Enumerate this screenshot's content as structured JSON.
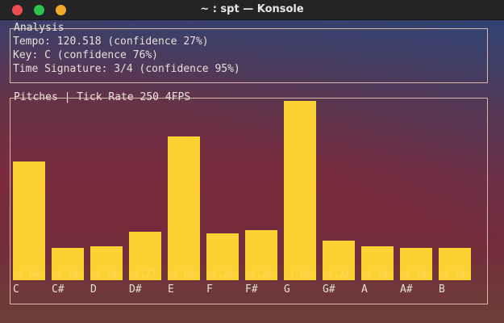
{
  "window": {
    "title": "~ : spt — Konsole"
  },
  "analysis": {
    "title": "Analysis",
    "tempo": "Tempo: 120.518 (confidence 27%)",
    "key": "Key: C (confidence 76%)",
    "time_signature": "Time Signature: 3/4 (confidence 95%)"
  },
  "pitches": {
    "title": "Pitches | Tick Rate 250 4FPS"
  },
  "chart_data": {
    "type": "bar",
    "categories": [
      "C",
      "C#",
      "D",
      "D#",
      "E",
      "F",
      "F#",
      "G",
      "G#",
      "A",
      "A#",
      "B"
    ],
    "values": [
      0.66,
      0.18,
      0.19,
      0.27,
      0.8,
      0.26,
      0.28,
      1.0,
      0.22,
      0.19,
      0.18,
      0.18
    ],
    "value_labels": [
      "0.66",
      "0.18",
      "0.19",
      "0.27",
      "0.80",
      "0.26",
      "0.28",
      "1.00",
      "0.22",
      "0.19",
      "0.18",
      "0.18"
    ],
    "title": "Pitches | Tick Rate 250 4FPS",
    "ylim": [
      0,
      1
    ],
    "bar_color": "#fcd133",
    "grid": false
  }
}
